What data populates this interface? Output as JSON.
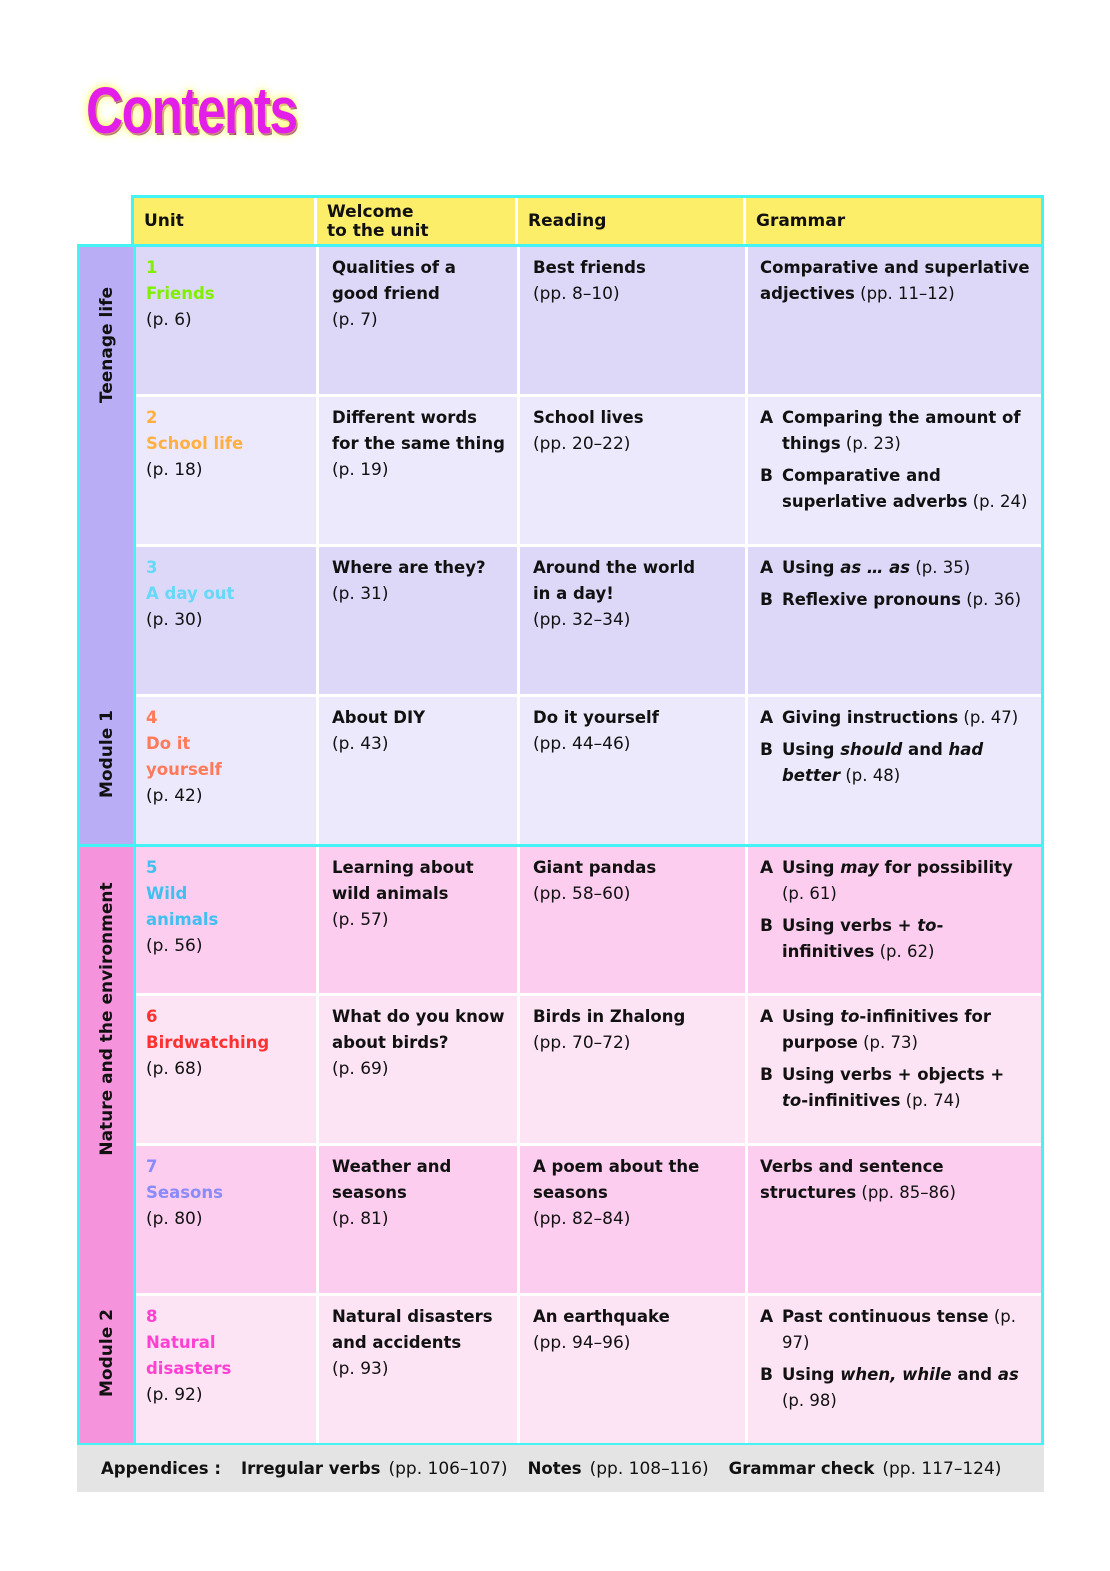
{
  "title": "Contents",
  "headers": [
    "Unit",
    "Welcome\nto the unit",
    "Reading",
    "Grammar"
  ],
  "modules": [
    {
      "name": "Module 1",
      "theme": "Teenage life",
      "side_color": "#b9aef5",
      "row_colors": [
        "#ddd8f8",
        "#ece9fc"
      ]
    },
    {
      "name": "Module 2",
      "theme": "Nature and the environment",
      "side_color": "#f593dc",
      "row_colors": [
        "#fccdee",
        "#fde4f5"
      ]
    }
  ],
  "units": [
    {
      "num": "1",
      "name": [
        "Friends"
      ],
      "page": "(p. 6)",
      "color": "#80f000",
      "welcome": [
        "Qualities of a",
        "good friend"
      ],
      "welcome_page": "(p. 7)",
      "reading": [
        "Best friends"
      ],
      "reading_page": "(pp. 8–10)",
      "grammar": [
        {
          "label": "",
          "parts": [
            {
              "t": "Comparative and superlative adjectives"
            },
            {
              "t": " (pp. 11–12)",
              "p": true
            }
          ]
        }
      ]
    },
    {
      "num": "2",
      "name": [
        "School life"
      ],
      "page": "(p. 18)",
      "color": "#ffb040",
      "welcome": [
        "Different words",
        "for the same thing"
      ],
      "welcome_page": "(p. 19)",
      "reading": [
        "School lives"
      ],
      "reading_page": "(pp. 20–22)",
      "grammar": [
        {
          "label": "A",
          "parts": [
            {
              "t": "Comparing the amount of things"
            },
            {
              "t": " (p. 23)",
              "p": true
            }
          ]
        },
        {
          "label": "B",
          "parts": [
            {
              "t": "Comparative and superlative adverbs"
            },
            {
              "t": " (p. 24)",
              "p": true
            }
          ]
        }
      ]
    },
    {
      "num": "3",
      "name": [
        "A day out"
      ],
      "page": "(p. 30)",
      "color": "#66d8f8",
      "welcome": [
        "Where are they?"
      ],
      "welcome_page": "(p. 31)",
      "reading": [
        "Around the world",
        "in a day!"
      ],
      "reading_page": "(pp. 32–34)",
      "grammar": [
        {
          "label": "A",
          "parts": [
            {
              "t": "Using "
            },
            {
              "t": "as … as",
              "i": true
            },
            {
              "t": " (p. 35)",
              "p": true
            }
          ]
        },
        {
          "label": "B",
          "parts": [
            {
              "t": "Reflexive pronouns"
            },
            {
              "t": " (p. 36)",
              "p": true
            }
          ]
        }
      ]
    },
    {
      "num": "4",
      "name": [
        "Do it",
        "yourself"
      ],
      "page": "(p. 42)",
      "color": "#ff7a5a",
      "welcome": [
        "About DIY"
      ],
      "welcome_page": "(p. 43)",
      "reading": [
        "Do it yourself"
      ],
      "reading_page": "(pp. 44–46)",
      "grammar": [
        {
          "label": "A",
          "parts": [
            {
              "t": "Giving instructions"
            },
            {
              "t": " (p. 47)",
              "p": true
            }
          ]
        },
        {
          "label": "B",
          "parts": [
            {
              "t": "Using "
            },
            {
              "t": "should",
              "i": true
            },
            {
              "t": " and "
            },
            {
              "t": "had better",
              "i": true
            },
            {
              "t": " (p. 48)",
              "p": true
            }
          ]
        }
      ]
    },
    {
      "num": "5",
      "name": [
        "Wild",
        "animals"
      ],
      "page": "(p. 56)",
      "color": "#40c0f0",
      "welcome": [
        "Learning about",
        "wild animals"
      ],
      "welcome_page": "(p. 57)",
      "reading": [
        "Giant pandas"
      ],
      "reading_page": "(pp. 58–60)",
      "grammar": [
        {
          "label": "A",
          "parts": [
            {
              "t": "Using "
            },
            {
              "t": "may",
              "i": true
            },
            {
              "t": " for possibility"
            },
            {
              "t": " (p. 61)",
              "p": true
            }
          ]
        },
        {
          "label": "B",
          "parts": [
            {
              "t": "Using verbs + "
            },
            {
              "t": "to",
              "i": true
            },
            {
              "t": "-infinitives"
            },
            {
              "t": " (p. 62)",
              "p": true
            }
          ]
        }
      ]
    },
    {
      "num": "6",
      "name": [
        "Birdwatching"
      ],
      "page": "(p. 68)",
      "color": "#ff3030",
      "welcome": [
        "What do you know",
        "about birds?"
      ],
      "welcome_page": "(p. 69)",
      "reading": [
        "Birds in Zhalong"
      ],
      "reading_page": "(pp. 70–72)",
      "grammar": [
        {
          "label": "A",
          "parts": [
            {
              "t": "Using "
            },
            {
              "t": "to",
              "i": true
            },
            {
              "t": "-infinitives for purpose"
            },
            {
              "t": " (p. 73)",
              "p": true
            }
          ]
        },
        {
          "label": "B",
          "parts": [
            {
              "t": "Using verbs + objects + "
            },
            {
              "t": "to",
              "i": true
            },
            {
              "t": "-infinitives"
            },
            {
              "t": " (p. 74)",
              "p": true
            }
          ]
        }
      ]
    },
    {
      "num": "7",
      "name": [
        "Seasons"
      ],
      "page": "(p. 80)",
      "color": "#8a8af8",
      "welcome": [
        "Weather and",
        "seasons"
      ],
      "welcome_page": "(p. 81)",
      "reading": [
        "A poem about the",
        "seasons"
      ],
      "reading_page": "(pp. 82–84)",
      "grammar": [
        {
          "label": "",
          "parts": [
            {
              "t": "Verbs and sentence structures"
            },
            {
              "t": " (pp. 85–86)",
              "p": true
            }
          ]
        }
      ]
    },
    {
      "num": "8",
      "name": [
        "Natural",
        "disasters"
      ],
      "page": "(p. 92)",
      "color": "#ff40d0",
      "welcome": [
        "Natural disasters",
        "and accidents"
      ],
      "welcome_page": "(p. 93)",
      "reading": [
        "An earthquake"
      ],
      "reading_page": "(pp. 94–96)",
      "grammar": [
        {
          "label": "A",
          "parts": [
            {
              "t": "Past continuous tense"
            },
            {
              "t": " (p. 97)",
              "p": true
            }
          ]
        },
        {
          "label": "B",
          "parts": [
            {
              "t": "Using "
            },
            {
              "t": "when, while",
              "i": true
            },
            {
              "t": " and "
            },
            {
              "t": "as",
              "i": true
            },
            {
              "t": " (p. 98)",
              "p": true
            }
          ]
        }
      ]
    }
  ],
  "appendices": {
    "label": "Appendices :",
    "items": [
      {
        "name": "Irregular verbs",
        "pages": "(pp. 106–107)"
      },
      {
        "name": "Notes",
        "pages": "(pp. 108–116)"
      },
      {
        "name": "Grammar check",
        "pages": "(pp. 117–124)"
      }
    ]
  }
}
